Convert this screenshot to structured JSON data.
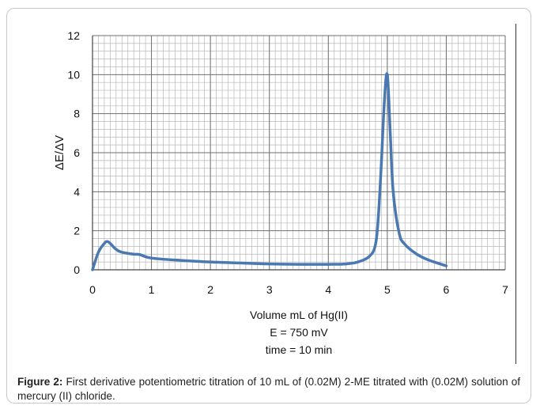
{
  "chart_data": {
    "type": "line",
    "xlabel_lines": [
      "Volume mL of Hg(II)",
      "E = 750 mV",
      "time = 10 min"
    ],
    "ylabel": "ΔE/ΔV",
    "xlim": [
      0,
      7
    ],
    "ylim": [
      0,
      12
    ],
    "x_ticks": [
      0,
      1,
      2,
      3,
      4,
      5,
      6,
      7
    ],
    "y_ticks": [
      0,
      2,
      4,
      6,
      8,
      10,
      12
    ],
    "grid": true,
    "line_color": "#4a78b0",
    "series": [
      {
        "x": [
          0,
          0.1,
          0.2,
          0.25,
          0.3,
          0.4,
          0.5,
          0.7,
          0.8,
          1.0,
          1.5,
          2.0,
          2.5,
          3.0,
          3.5,
          4.0,
          4.3,
          4.5,
          4.7,
          4.8,
          4.85,
          4.9,
          4.95,
          5.0,
          5.05,
          5.1,
          5.2,
          5.3,
          5.5,
          5.7,
          6.0
        ],
        "y": [
          0,
          0.9,
          1.35,
          1.45,
          1.35,
          1.05,
          0.9,
          0.8,
          0.78,
          0.6,
          0.48,
          0.4,
          0.35,
          0.3,
          0.28,
          0.28,
          0.3,
          0.4,
          0.7,
          1.3,
          2.8,
          5.5,
          8.6,
          10.0,
          7.0,
          4.0,
          1.9,
          1.3,
          0.8,
          0.5,
          0.2
        ]
      }
    ]
  },
  "figure": {
    "caption_label": "Figure 2:",
    "caption_text": " First derivative potentiometric titration of 10 mL of (0.02M) 2-ME titrated with (0.02M) solution of mercury (II) chloride."
  }
}
